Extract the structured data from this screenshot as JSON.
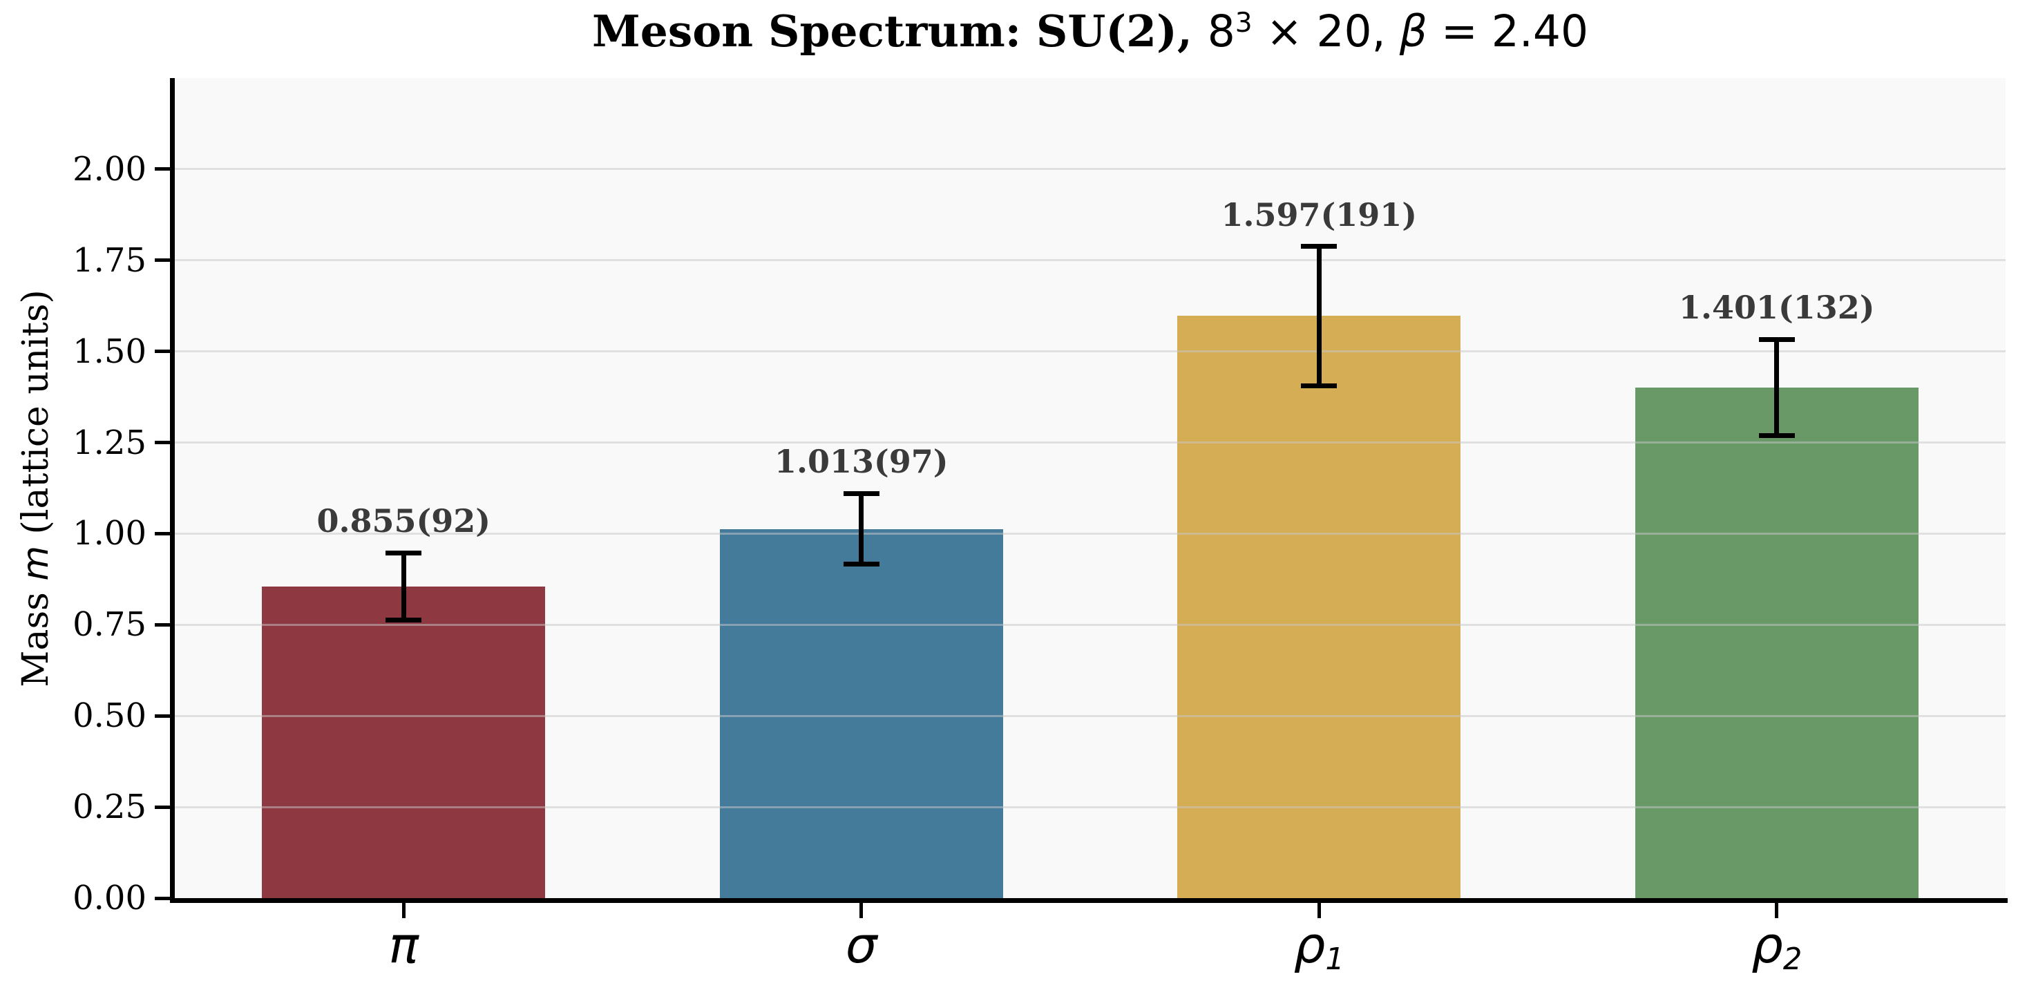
{
  "chart_data": {
    "type": "bar",
    "title": "Meson Spectrum: SU(2), 8³ × 20, β = 2.40",
    "title_parts": [
      {
        "text": "Meson Spectrum: SU(2), ",
        "style": "serif-bold"
      },
      {
        "text": "8",
        "style": "sans"
      },
      {
        "text": "3",
        "style": "sans-sup"
      },
      {
        "text": " × 20, ",
        "style": "sans"
      },
      {
        "text": "β",
        "style": "sans-italic"
      },
      {
        "text": " = 2.40",
        "style": "sans"
      }
    ],
    "ylabel": "Mass m (lattice units)",
    "ylabel_parts": [
      {
        "text": "Mass ",
        "style": "serif"
      },
      {
        "text": "m",
        "style": "sans-italic"
      },
      {
        "text": " (lattice units)",
        "style": "serif"
      }
    ],
    "categories": [
      "π",
      "σ",
      "ρ₁",
      "ρ₂"
    ],
    "categories_parts": [
      {
        "base": "π",
        "sub": ""
      },
      {
        "base": "σ",
        "sub": ""
      },
      {
        "base": "ρ",
        "sub": "1"
      },
      {
        "base": "ρ",
        "sub": "2"
      }
    ],
    "values": [
      0.855,
      1.013,
      1.597,
      1.401
    ],
    "errors": [
      0.092,
      0.097,
      0.191,
      0.132
    ],
    "bar_labels": [
      "0.855(92)",
      "1.013(97)",
      "1.597(191)",
      "1.401(132)"
    ],
    "bar_colors": [
      "#8e3942",
      "#447a9a",
      "#d5ad55",
      "#6a9968"
    ],
    "yticks": [
      {
        "value": 0.0,
        "label": "0.00"
      },
      {
        "value": 0.25,
        "label": "0.25"
      },
      {
        "value": 0.5,
        "label": "0.50"
      },
      {
        "value": 0.75,
        "label": "0.75"
      },
      {
        "value": 1.0,
        "label": "1.00"
      },
      {
        "value": 1.25,
        "label": "1.25"
      },
      {
        "value": 1.5,
        "label": "1.50"
      },
      {
        "value": 1.75,
        "label": "1.75"
      },
      {
        "value": 2.0,
        "label": "2.00"
      }
    ],
    "ylim": [
      0,
      2.25
    ],
    "grid": "horizontal",
    "legend": "none",
    "colors": {
      "figure_bg": "#ffffff",
      "plot_bg": "#f9f9f9",
      "gridline": "#e4e4e4",
      "axis": "#000000",
      "error_bar": "#000000",
      "value_label": "#3a3a3a"
    }
  }
}
